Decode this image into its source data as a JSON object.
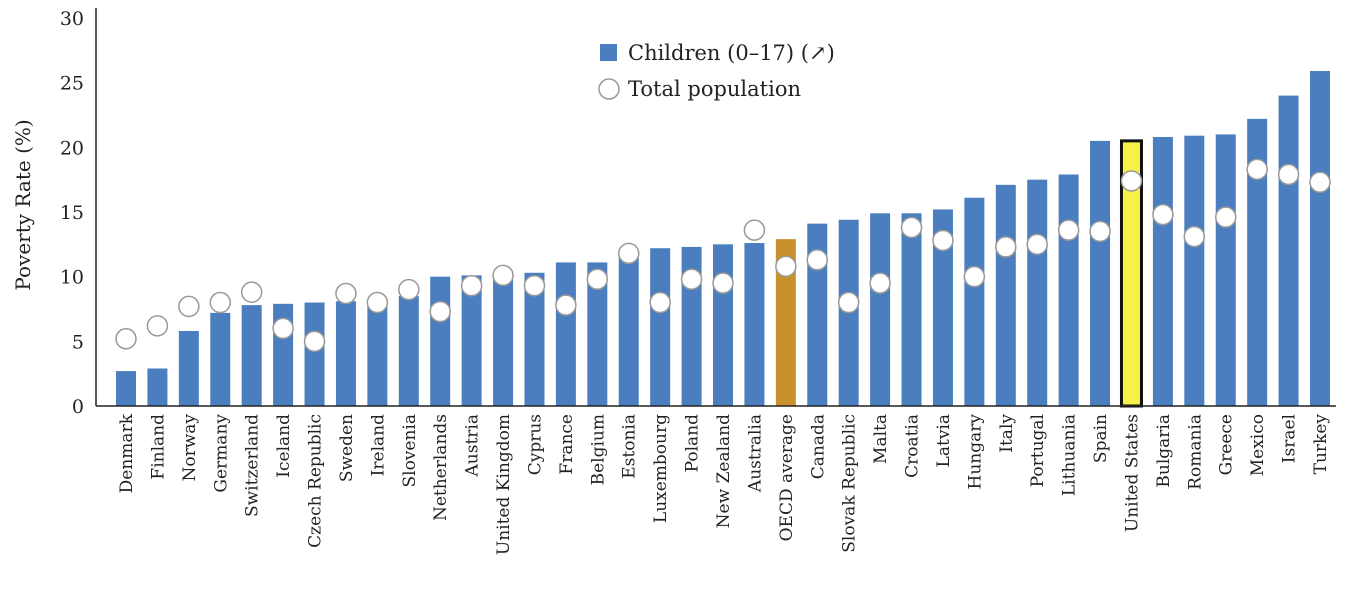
{
  "chart_data": {
    "type": "bar",
    "title": "",
    "xlabel": "",
    "ylabel": "Poverty Rate (%)",
    "ylim": [
      0,
      30
    ],
    "yticks": [
      0,
      5,
      10,
      15,
      20,
      25,
      30
    ],
    "grid": false,
    "legend_position": "top-center",
    "colors": {
      "bar": "#4a7ebf",
      "oecd_bar": "#c8912e",
      "highlight_bar": "#f7f046",
      "highlight_outline": "#111111",
      "marker_fill": "#ffffff",
      "marker_stroke": "#999999",
      "axis": "#222222"
    },
    "highlight": "United States",
    "oecd": "OECD average",
    "categories": [
      "Denmark",
      "Finland",
      "Norway",
      "Germany",
      "Switzerland",
      "Iceland",
      "Czech Republic",
      "Sweden",
      "Ireland",
      "Slovenia",
      "Netherlands",
      "Austria",
      "United Kingdom",
      "Cyprus",
      "France",
      "Belgium",
      "Estonia",
      "Luxembourg",
      "Poland",
      "New Zealand",
      "Australia",
      "OECD average",
      "Canada",
      "Slovak Republic",
      "Malta",
      "Croatia",
      "Latvia",
      "Hungary",
      "Italy",
      "Portugal",
      "Lithuania",
      "Spain",
      "United States",
      "Bulgaria",
      "Romania",
      "Greece",
      "Mexico",
      "Israel",
      "Turkey"
    ],
    "series": [
      {
        "name": "Children (0–17) (↗)",
        "kind": "bar",
        "values": [
          2.7,
          2.9,
          5.8,
          7.2,
          7.8,
          7.9,
          8.0,
          8.1,
          8.1,
          8.5,
          10.0,
          10.1,
          10.2,
          10.3,
          11.1,
          11.1,
          11.6,
          12.2,
          12.3,
          12.5,
          12.6,
          12.9,
          14.1,
          14.4,
          14.9,
          14.9,
          15.2,
          16.1,
          17.1,
          17.5,
          17.9,
          20.5,
          20.5,
          20.8,
          20.9,
          21.0,
          22.2,
          24.0,
          25.9
        ],
        "marker": "square"
      },
      {
        "name": "Total population",
        "kind": "marker",
        "values": [
          5.2,
          6.2,
          7.7,
          8.0,
          8.8,
          6.0,
          5.0,
          8.7,
          8.0,
          9.0,
          7.3,
          9.3,
          10.1,
          9.3,
          7.8,
          9.8,
          11.8,
          8.0,
          9.8,
          9.5,
          13.6,
          10.8,
          11.3,
          8.0,
          9.5,
          13.8,
          12.8,
          10.0,
          12.3,
          12.5,
          13.6,
          13.5,
          17.4,
          14.8,
          13.1,
          14.6,
          18.3,
          17.9,
          17.3
        ],
        "marker": "circle"
      }
    ]
  }
}
